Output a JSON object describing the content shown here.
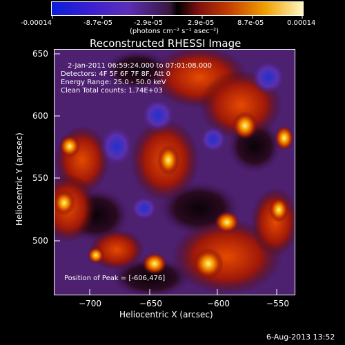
{
  "colorbar": {
    "ticks": [
      "-0.00014",
      "-8.7e-05",
      "-2.9e-05",
      "2.9e-05",
      "8.7e-05",
      "0.00014"
    ],
    "unit_label": "(photons cm⁻² s⁻¹ asec⁻²)"
  },
  "plot": {
    "title": "Reconstructed RHESSI Image",
    "info": {
      "time": "2-Jan-2011 06:59:24.000 to 07:01:08.000",
      "detectors": "Detectors: 4F 5F 6F 7F 8F, Att 0",
      "energy": "Energy Range: 25.0 - 50.0 keV",
      "method": "Clean     Total counts: 1.74E+03"
    },
    "peak": "Position of Peak = [-606,476]",
    "xlabel": "Heliocentric X (arcsec)",
    "ylabel": "Heliocentric Y (arcsec)",
    "xticks": [
      "−700",
      "−650",
      "−600",
      "−550"
    ],
    "yticks": [
      "650",
      "600",
      "550",
      "500"
    ]
  },
  "footer": {
    "date": "6-Aug-2013 13:52"
  }
}
